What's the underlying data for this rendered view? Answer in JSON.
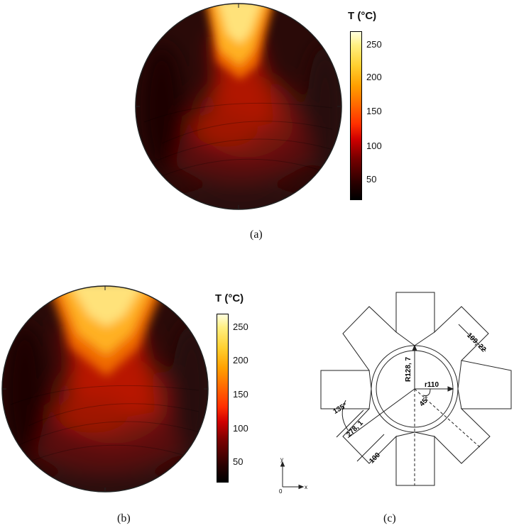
{
  "panels": {
    "a": {
      "caption": "(a)",
      "colorbar": {
        "title": "T (°C)",
        "ticks": [
          "250",
          "200",
          "150",
          "100",
          "50"
        ],
        "range": [
          18,
          272
        ]
      }
    },
    "b": {
      "caption": "(b)",
      "colorbar": {
        "title": "T (°C)",
        "ticks": [
          "250",
          "200",
          "150",
          "100",
          "50"
        ],
        "range": [
          18,
          272
        ]
      }
    },
    "c": {
      "caption": "(c)",
      "dimensions": {
        "arm_width": "109, 22",
        "outer_radius": "R128, 7",
        "inner_radius": "r110",
        "arm_angle": "45°",
        "wedge_angle": "135°",
        "arm_length": "278, 1",
        "arm_end": "100"
      },
      "axes": {
        "y": "y",
        "x": "x",
        "origin": "0"
      }
    }
  },
  "colors": {
    "cold": "#1a0606",
    "mid": "#c81400",
    "hot": "#fff2a0"
  }
}
